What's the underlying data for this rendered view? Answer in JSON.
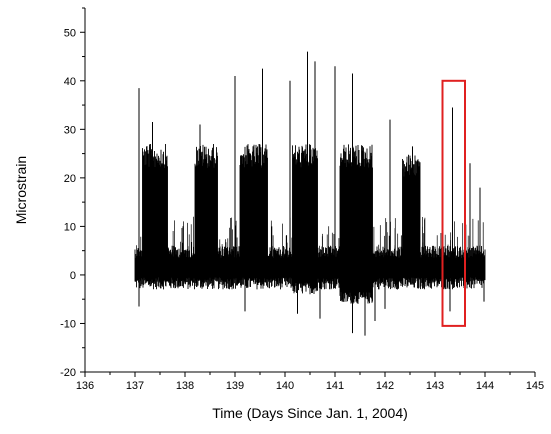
{
  "chart_data": {
    "type": "line",
    "title": "",
    "xlabel": "Time (Days Since Jan. 1, 2004)",
    "ylabel": "Microstrain",
    "xlim": [
      136,
      145
    ],
    "ylim": [
      -20,
      55
    ],
    "x_ticks": [
      136,
      137,
      138,
      139,
      140,
      141,
      142,
      143,
      144,
      145
    ],
    "y_ticks": [
      -20,
      -10,
      0,
      10,
      20,
      30,
      40,
      50
    ],
    "x_tick_labels": [
      "136",
      "137",
      "138",
      "139",
      "140",
      "141",
      "142",
      "143",
      "144",
      "145"
    ],
    "y_tick_labels": [
      "-20",
      "-10",
      "0",
      "10",
      "20",
      "30",
      "40",
      "50"
    ],
    "grid": false,
    "legend": "none",
    "line_color": "#000000",
    "series": [
      {
        "x_range": [
          137.0,
          144.0
        ],
        "baseline_band": [
          -3,
          6
        ],
        "high_activity_periods": [
          {
            "x_start": 137.15,
            "x_end": 137.65,
            "band": [
              -3,
              27
            ]
          },
          {
            "x_start": 138.2,
            "x_end": 138.65,
            "band": [
              -3,
              27
            ]
          },
          {
            "x_start": 139.1,
            "x_end": 139.65,
            "band": [
              -3,
              27
            ]
          },
          {
            "x_start": 140.15,
            "x_end": 140.65,
            "band": [
              -4,
              27
            ]
          },
          {
            "x_start": 141.1,
            "x_end": 141.75,
            "band": [
              -6,
              27
            ]
          },
          {
            "x_start": 142.35,
            "x_end": 142.7,
            "band": [
              -3,
              25
            ]
          }
        ],
        "peaks": [
          {
            "x": 137.08,
            "y": 38.5
          },
          {
            "x": 137.35,
            "y": 31.5
          },
          {
            "x": 138.3,
            "y": 31
          },
          {
            "x": 139.0,
            "y": 41
          },
          {
            "x": 139.55,
            "y": 42.5
          },
          {
            "x": 140.1,
            "y": 40
          },
          {
            "x": 140.45,
            "y": 46
          },
          {
            "x": 140.6,
            "y": 44
          },
          {
            "x": 141.0,
            "y": 43
          },
          {
            "x": 141.35,
            "y": 41.5
          },
          {
            "x": 142.1,
            "y": 32
          },
          {
            "x": 142.55,
            "y": 26.5
          },
          {
            "x": 143.35,
            "y": 34.5
          },
          {
            "x": 143.7,
            "y": 23
          },
          {
            "x": 143.9,
            "y": 18
          }
        ],
        "troughs": [
          {
            "x": 137.08,
            "y": -6.5
          },
          {
            "x": 139.2,
            "y": -7.5
          },
          {
            "x": 140.25,
            "y": -8
          },
          {
            "x": 140.7,
            "y": -9
          },
          {
            "x": 141.35,
            "y": -12
          },
          {
            "x": 141.6,
            "y": -12.5
          },
          {
            "x": 141.8,
            "y": -9.5
          },
          {
            "x": 142.0,
            "y": -7
          },
          {
            "x": 143.3,
            "y": -7.5
          },
          {
            "x": 143.98,
            "y": -5.5
          }
        ]
      }
    ],
    "annotations": [
      {
        "type": "rectangle",
        "x_range": [
          143.15,
          143.6
        ],
        "y_range": [
          -10.5,
          40
        ],
        "color": "#e02020"
      }
    ]
  }
}
